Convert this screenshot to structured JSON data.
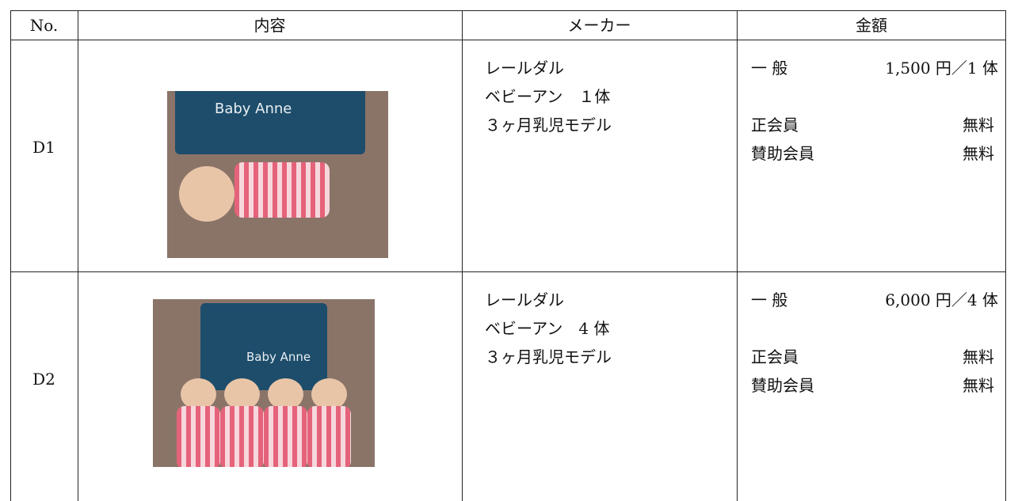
{
  "header": [
    "No.",
    "内容",
    "メーカー",
    "金額"
  ],
  "rows": [
    {
      "no": "D1",
      "image_text": "Baby Anne",
      "maker": [
        "レールダル",
        "ベビーアン　１体",
        "３ヶ月乳児モデル"
      ],
      "price": {
        "general": "一 般",
        "general_price": "1,500 円／1 体",
        "members": [
          {
            "label": "正会員",
            "fee": "無料"
          },
          {
            "label": "賛助会員",
            "fee": "無料"
          }
        ]
      }
    },
    {
      "no": "D2",
      "image_text": "Baby Anne",
      "maker": [
        "レールダル",
        "ベビーアン　4 体",
        "３ヶ月乳児モデル"
      ],
      "price": {
        "general": "一 般",
        "general_price": "6,000 円／4 体",
        "members": [
          {
            "label": "正会員",
            "fee": "無料"
          },
          {
            "label": "賛助会員",
            "fee": "無料"
          }
        ]
      }
    }
  ]
}
